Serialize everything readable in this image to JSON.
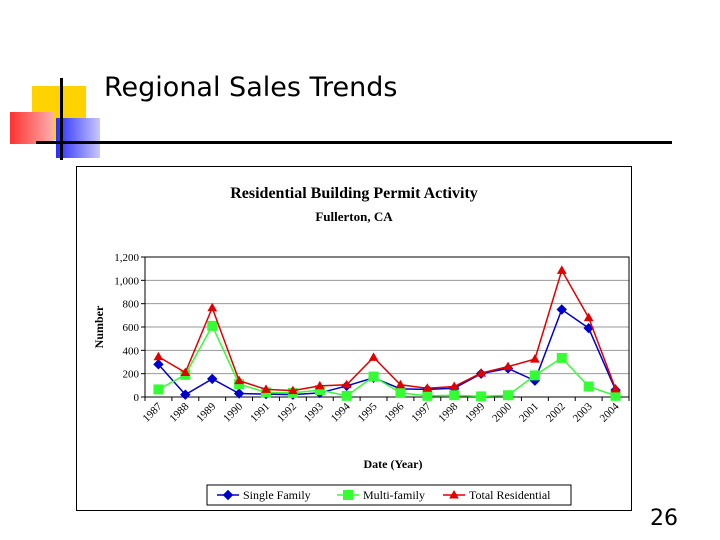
{
  "slide": {
    "title": "Regional Sales Trends",
    "page_number": "26"
  },
  "colors": {
    "single_family": "#0000cc",
    "multi_family": "#33ff33",
    "total_residential": "#e00000",
    "deco_yellow": "#ffd200",
    "deco_red": "#ff3030",
    "deco_blue": "#4040ff"
  },
  "chart_data": {
    "type": "line",
    "title": "Residential Building Permit Activity",
    "subtitle": "Fullerton, CA",
    "xlabel": "Date (Year)",
    "ylabel": "Number",
    "ylim": [
      0,
      1200
    ],
    "yticks": [
      0,
      200,
      400,
      600,
      800,
      1000,
      1200
    ],
    "ytick_labels": [
      "0",
      "200",
      "400",
      "600",
      "800",
      "1,000",
      "1,200"
    ],
    "grid": true,
    "legend": "bottom",
    "categories": [
      "1987",
      "1988",
      "1989",
      "1990",
      "1991",
      "1992",
      "1993",
      "1994",
      "1995",
      "1996",
      "1997",
      "1998",
      "1999",
      "2000",
      "2001",
      "2002",
      "2003",
      "2004"
    ],
    "series": [
      {
        "name": "Single Family",
        "marker": "diamond",
        "color": "#0000cc",
        "values": [
          280,
          20,
          155,
          30,
          25,
          20,
          35,
          95,
          165,
          70,
          65,
          75,
          200,
          245,
          140,
          750,
          590,
          60
        ]
      },
      {
        "name": "Multi-family",
        "marker": "square",
        "color": "#33ff33",
        "values": [
          65,
          190,
          610,
          110,
          40,
          35,
          60,
          10,
          175,
          35,
          10,
          15,
          5,
          15,
          185,
          335,
          90,
          10
        ]
      },
      {
        "name": "Total Residential",
        "marker": "triangle",
        "color": "#e00000",
        "values": [
          345,
          210,
          765,
          140,
          65,
          55,
          95,
          105,
          340,
          105,
          75,
          90,
          205,
          260,
          325,
          1085,
          680,
          70
        ]
      }
    ]
  }
}
